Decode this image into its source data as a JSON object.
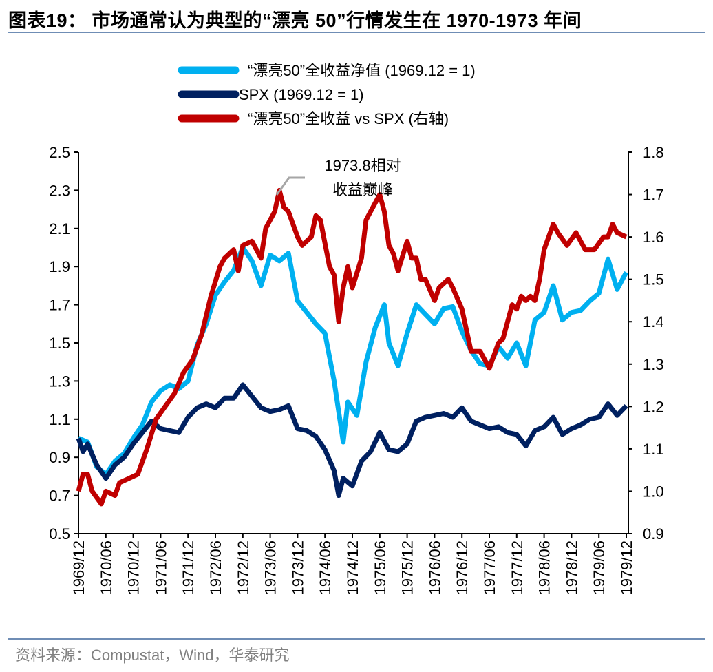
{
  "title": "图表19：  市场通常认为典型的“漂亮 50”行情发生在 1970-1973 年间",
  "source": "资料来源：Compustat，Wind，华泰研究",
  "chart_data": {
    "type": "line",
    "title": "图表19：  市场通常认为典型的“漂亮 50”行情发生在 1970-1973 年间",
    "xlabel": "",
    "ylabel": "",
    "y_left": {
      "range": [
        0.5,
        2.5
      ],
      "ticks": [
        "0.5",
        "0.7",
        "0.9",
        "1.1",
        "1.3",
        "1.5",
        "1.7",
        "1.9",
        "2.1",
        "2.3",
        "2.5"
      ]
    },
    "y_right": {
      "range": [
        0.9,
        1.8
      ],
      "ticks": [
        "0.9",
        "1.0",
        "1.1",
        "1.2",
        "1.3",
        "1.4",
        "1.5",
        "1.6",
        "1.7",
        "1.8"
      ]
    },
    "x_ticks": [
      "1969/12",
      "1970/06",
      "1970/12",
      "1971/06",
      "1971/12",
      "1972/06",
      "1972/12",
      "1973/06",
      "1973/12",
      "1974/06",
      "1974/12",
      "1975/06",
      "1975/12",
      "1976/06",
      "1976/12",
      "1977/06",
      "1977/12",
      "1978/06",
      "1978/12",
      "1979/06",
      "1979/12"
    ],
    "grid": false,
    "legend_position": "top-center",
    "annotation": {
      "text_line1": "1973.8相对",
      "text_line2": "收益巅峰",
      "x": "1973/08"
    },
    "series": [
      {
        "name": "“漂亮50”全收益净值 (1969.12 = 1)",
        "axis": "left",
        "color": "#00B0F0",
        "points": [
          [
            "1969/12",
            1.0
          ],
          [
            "1970/02",
            0.98
          ],
          [
            "1970/04",
            0.85
          ],
          [
            "1970/06",
            0.81
          ],
          [
            "1970/08",
            0.88
          ],
          [
            "1970/10",
            0.92
          ],
          [
            "1970/12",
            1.0
          ],
          [
            "1971/02",
            1.07
          ],
          [
            "1971/04",
            1.19
          ],
          [
            "1971/06",
            1.25
          ],
          [
            "1971/08",
            1.28
          ],
          [
            "1971/10",
            1.26
          ],
          [
            "1971/12",
            1.3
          ],
          [
            "1972/02",
            1.49
          ],
          [
            "1972/04",
            1.6
          ],
          [
            "1972/06",
            1.75
          ],
          [
            "1972/08",
            1.82
          ],
          [
            "1972/10",
            1.88
          ],
          [
            "1972/12",
            2.0
          ],
          [
            "1973/02",
            1.93
          ],
          [
            "1973/04",
            1.8
          ],
          [
            "1973/06",
            1.96
          ],
          [
            "1973/08",
            1.93
          ],
          [
            "1973/10",
            1.97
          ],
          [
            "1973/12",
            1.72
          ],
          [
            "1974/02",
            1.66
          ],
          [
            "1974/04",
            1.6
          ],
          [
            "1974/06",
            1.55
          ],
          [
            "1974/08",
            1.3
          ],
          [
            "1974/10",
            0.98
          ],
          [
            "1974/11",
            1.19
          ],
          [
            "1975/01",
            1.12
          ],
          [
            "1975/03",
            1.4
          ],
          [
            "1975/05",
            1.58
          ],
          [
            "1975/07",
            1.7
          ],
          [
            "1975/08",
            1.5
          ],
          [
            "1975/10",
            1.38
          ],
          [
            "1975/12",
            1.55
          ],
          [
            "1976/02",
            1.7
          ],
          [
            "1976/04",
            1.65
          ],
          [
            "1976/06",
            1.6
          ],
          [
            "1976/08",
            1.68
          ],
          [
            "1976/10",
            1.69
          ],
          [
            "1976/12",
            1.56
          ],
          [
            "1977/02",
            1.46
          ],
          [
            "1977/04",
            1.39
          ],
          [
            "1977/06",
            1.38
          ],
          [
            "1977/08",
            1.48
          ],
          [
            "1977/10",
            1.42
          ],
          [
            "1977/12",
            1.5
          ],
          [
            "1978/02",
            1.38
          ],
          [
            "1978/04",
            1.62
          ],
          [
            "1978/06",
            1.66
          ],
          [
            "1978/08",
            1.8
          ],
          [
            "1978/10",
            1.62
          ],
          [
            "1978/12",
            1.66
          ],
          [
            "1979/02",
            1.67
          ],
          [
            "1979/04",
            1.72
          ],
          [
            "1979/06",
            1.76
          ],
          [
            "1979/08",
            1.94
          ],
          [
            "1979/10",
            1.78
          ],
          [
            "1979/12",
            1.87
          ]
        ]
      },
      {
        "name": "SPX (1969.12 = 1)",
        "axis": "left",
        "color": "#002060",
        "points": [
          [
            "1969/12",
            1.0
          ],
          [
            "1970/01",
            0.93
          ],
          [
            "1970/02",
            0.97
          ],
          [
            "1970/04",
            0.86
          ],
          [
            "1970/06",
            0.79
          ],
          [
            "1970/08",
            0.86
          ],
          [
            "1970/10",
            0.9
          ],
          [
            "1970/12",
            0.97
          ],
          [
            "1971/02",
            1.03
          ],
          [
            "1971/04",
            1.09
          ],
          [
            "1971/06",
            1.05
          ],
          [
            "1971/08",
            1.04
          ],
          [
            "1971/10",
            1.03
          ],
          [
            "1971/12",
            1.11
          ],
          [
            "1972/02",
            1.16
          ],
          [
            "1972/04",
            1.18
          ],
          [
            "1972/06",
            1.16
          ],
          [
            "1972/08",
            1.21
          ],
          [
            "1972/10",
            1.21
          ],
          [
            "1972/12",
            1.28
          ],
          [
            "1973/02",
            1.22
          ],
          [
            "1973/04",
            1.16
          ],
          [
            "1973/06",
            1.14
          ],
          [
            "1973/08",
            1.15
          ],
          [
            "1973/10",
            1.17
          ],
          [
            "1973/12",
            1.05
          ],
          [
            "1974/02",
            1.04
          ],
          [
            "1974/04",
            1.01
          ],
          [
            "1974/06",
            0.94
          ],
          [
            "1974/08",
            0.83
          ],
          [
            "1974/09",
            0.7
          ],
          [
            "1974/10",
            0.79
          ],
          [
            "1974/12",
            0.75
          ],
          [
            "1975/02",
            0.88
          ],
          [
            "1975/04",
            0.93
          ],
          [
            "1975/06",
            1.03
          ],
          [
            "1975/08",
            0.94
          ],
          [
            "1975/10",
            0.93
          ],
          [
            "1975/12",
            0.97
          ],
          [
            "1976/02",
            1.09
          ],
          [
            "1976/04",
            1.11
          ],
          [
            "1976/06",
            1.12
          ],
          [
            "1976/08",
            1.13
          ],
          [
            "1976/10",
            1.11
          ],
          [
            "1976/12",
            1.16
          ],
          [
            "1977/02",
            1.09
          ],
          [
            "1977/04",
            1.07
          ],
          [
            "1977/06",
            1.05
          ],
          [
            "1977/08",
            1.06
          ],
          [
            "1977/10",
            1.03
          ],
          [
            "1977/12",
            1.02
          ],
          [
            "1978/02",
            0.96
          ],
          [
            "1978/04",
            1.04
          ],
          [
            "1978/06",
            1.06
          ],
          [
            "1978/08",
            1.11
          ],
          [
            "1978/10",
            1.02
          ],
          [
            "1978/12",
            1.05
          ],
          [
            "1979/02",
            1.07
          ],
          [
            "1979/04",
            1.1
          ],
          [
            "1979/06",
            1.11
          ],
          [
            "1979/08",
            1.18
          ],
          [
            "1979/10",
            1.12
          ],
          [
            "1979/12",
            1.17
          ]
        ]
      },
      {
        "name": "“漂亮50”全收益 vs SPX (右轴)",
        "axis": "right",
        "color": "#C00000",
        "points": [
          [
            "1969/12",
            1.0
          ],
          [
            "1970/01",
            1.04
          ],
          [
            "1970/02",
            1.04
          ],
          [
            "1970/03",
            1.0
          ],
          [
            "1970/05",
            0.97
          ],
          [
            "1970/06",
            1.0
          ],
          [
            "1970/08",
            0.99
          ],
          [
            "1970/09",
            1.02
          ],
          [
            "1970/11",
            1.03
          ],
          [
            "1971/01",
            1.04
          ],
          [
            "1971/03",
            1.1
          ],
          [
            "1971/05",
            1.17
          ],
          [
            "1971/07",
            1.2
          ],
          [
            "1971/09",
            1.23
          ],
          [
            "1971/11",
            1.28
          ],
          [
            "1972/01",
            1.31
          ],
          [
            "1972/03",
            1.37
          ],
          [
            "1972/05",
            1.46
          ],
          [
            "1972/07",
            1.53
          ],
          [
            "1972/08",
            1.55
          ],
          [
            "1972/10",
            1.57
          ],
          [
            "1972/11",
            1.52
          ],
          [
            "1972/12",
            1.58
          ],
          [
            "1973/02",
            1.59
          ],
          [
            "1973/04",
            1.55
          ],
          [
            "1973/05",
            1.62
          ],
          [
            "1973/07",
            1.66
          ],
          [
            "1973/08",
            1.71
          ],
          [
            "1973/09",
            1.67
          ],
          [
            "1973/10",
            1.66
          ],
          [
            "1973/12",
            1.6
          ],
          [
            "1974/01",
            1.58
          ],
          [
            "1974/03",
            1.6
          ],
          [
            "1974/04",
            1.65
          ],
          [
            "1974/05",
            1.64
          ],
          [
            "1974/07",
            1.53
          ],
          [
            "1974/08",
            1.51
          ],
          [
            "1974/09",
            1.4
          ],
          [
            "1974/10",
            1.48
          ],
          [
            "1974/11",
            1.53
          ],
          [
            "1974/12",
            1.48
          ],
          [
            "1975/02",
            1.55
          ],
          [
            "1975/03",
            1.64
          ],
          [
            "1975/04",
            1.66
          ],
          [
            "1975/06",
            1.7
          ],
          [
            "1975/07",
            1.66
          ],
          [
            "1975/08",
            1.58
          ],
          [
            "1975/09",
            1.56
          ],
          [
            "1975/10",
            1.52
          ],
          [
            "1975/12",
            1.59
          ],
          [
            "1976/01",
            1.55
          ],
          [
            "1976/02",
            1.55
          ],
          [
            "1976/03",
            1.5
          ],
          [
            "1976/04",
            1.5
          ],
          [
            "1976/06",
            1.45
          ],
          [
            "1976/07",
            1.48
          ],
          [
            "1976/09",
            1.5
          ],
          [
            "1976/10",
            1.48
          ],
          [
            "1976/12",
            1.43
          ],
          [
            "1977/01",
            1.38
          ],
          [
            "1977/02",
            1.33
          ],
          [
            "1977/04",
            1.33
          ],
          [
            "1977/06",
            1.29
          ],
          [
            "1977/08",
            1.35
          ],
          [
            "1977/09",
            1.36
          ],
          [
            "1977/11",
            1.44
          ],
          [
            "1977/12",
            1.43
          ],
          [
            "1978/01",
            1.46
          ],
          [
            "1978/02",
            1.45
          ],
          [
            "1978/03",
            1.46
          ],
          [
            "1978/04",
            1.45
          ],
          [
            "1978/05",
            1.5
          ],
          [
            "1978/06",
            1.57
          ],
          [
            "1978/08",
            1.63
          ],
          [
            "1978/09",
            1.61
          ],
          [
            "1978/11",
            1.58
          ],
          [
            "1979/01",
            1.61
          ],
          [
            "1979/03",
            1.57
          ],
          [
            "1979/05",
            1.57
          ],
          [
            "1979/07",
            1.6
          ],
          [
            "1979/08",
            1.6
          ],
          [
            "1979/09",
            1.63
          ],
          [
            "1979/10",
            1.61
          ],
          [
            "1979/12",
            1.6
          ]
        ]
      }
    ]
  }
}
